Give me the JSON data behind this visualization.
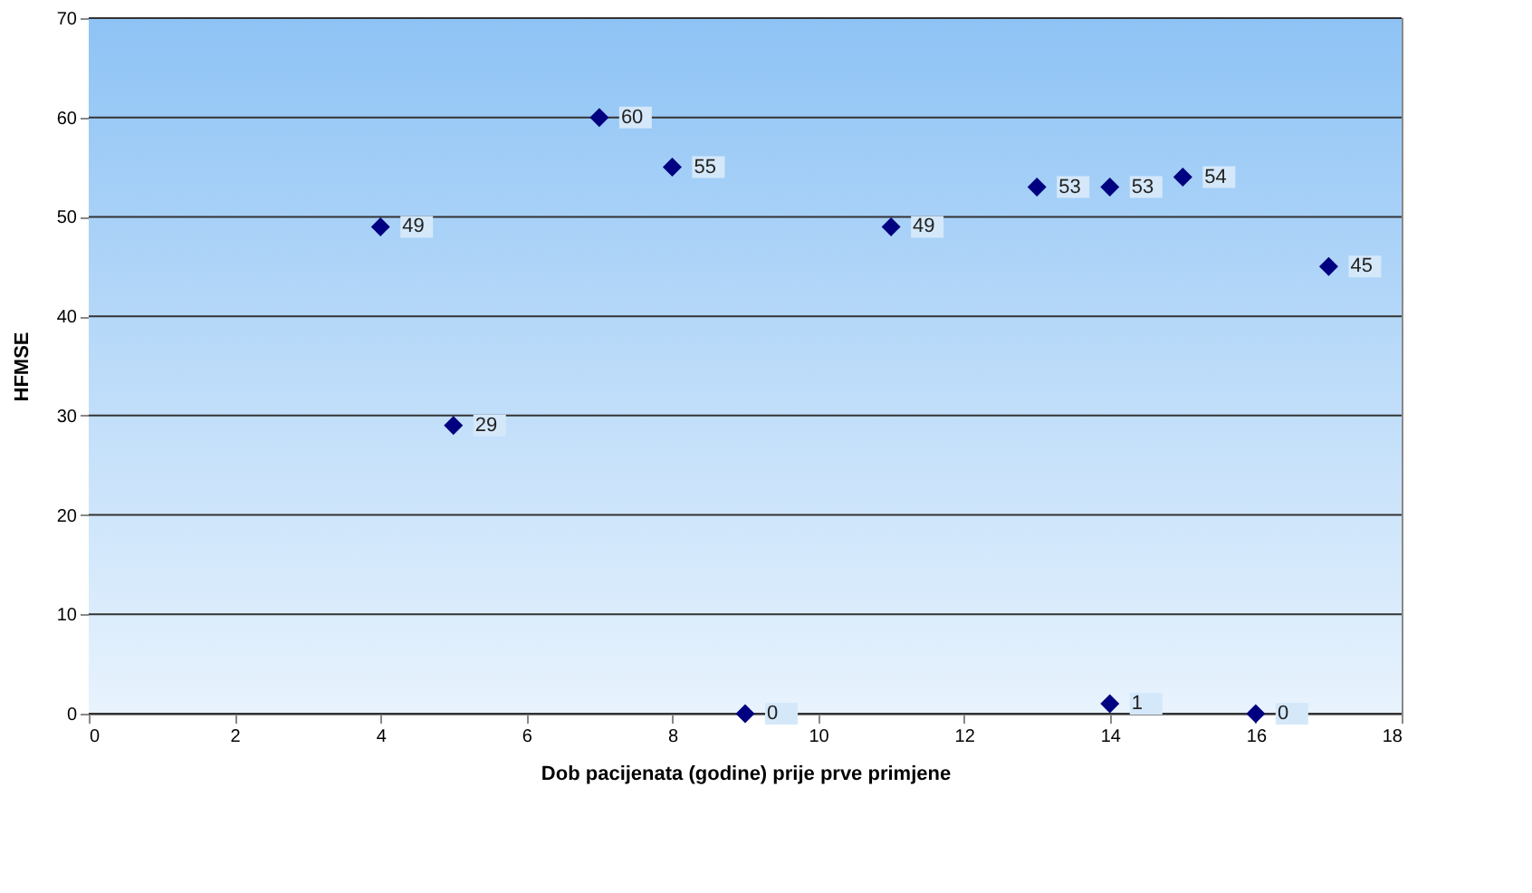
{
  "chart_data": {
    "type": "scatter",
    "xlabel": "Dob pacijenata (godine) prije prve primjene",
    "ylabel": "HFMSE",
    "x": [
      4,
      5,
      7,
      8,
      9,
      11,
      13,
      14,
      14,
      15,
      16,
      17
    ],
    "values": [
      49,
      29,
      60,
      55,
      0,
      49,
      53,
      53,
      1,
      54,
      0,
      45
    ],
    "color": "#000080",
    "marker": "diamond",
    "data_labels": true,
    "xlim": [
      0,
      18
    ],
    "xticks": [
      0,
      2,
      4,
      6,
      8,
      10,
      12,
      14,
      16,
      18
    ],
    "ylim": [
      0,
      70
    ],
    "yticks": [
      0,
      10,
      20,
      30,
      40,
      50,
      60,
      70
    ],
    "grid": "y"
  }
}
